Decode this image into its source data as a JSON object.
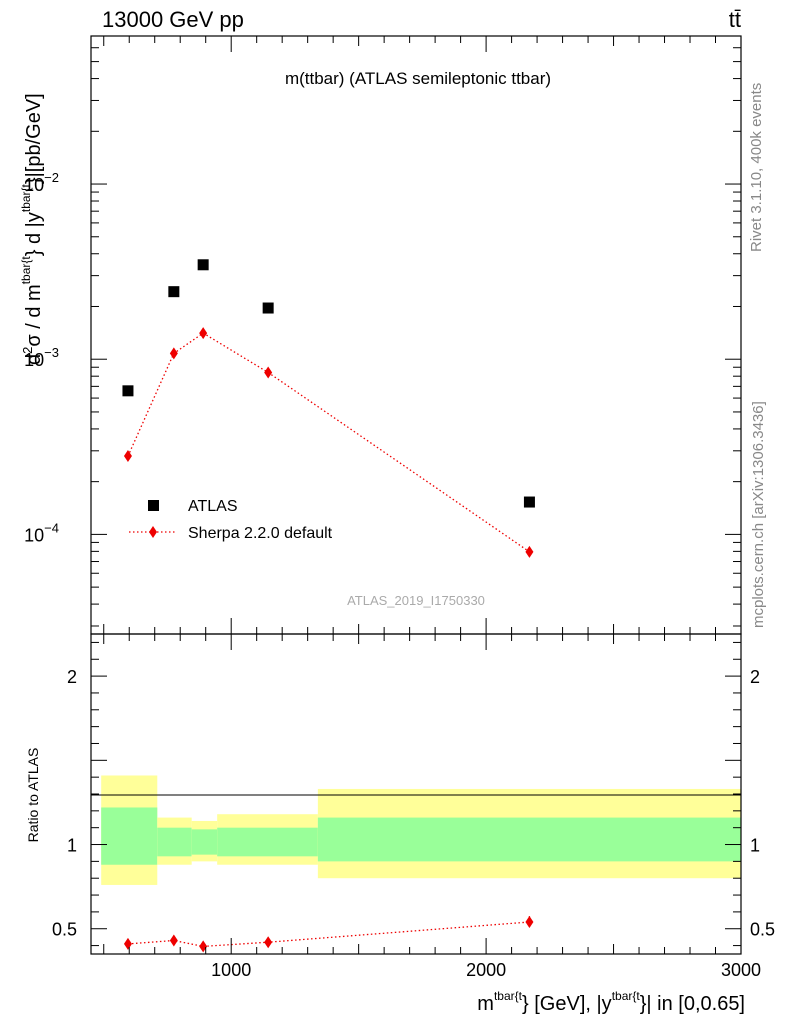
{
  "header": {
    "energy_label": "13000 GeV pp",
    "process_label": "tt̄"
  },
  "side_labels": {
    "rivet": "Rivet 3.1.10,  400k events",
    "mcplots": "mcplots.cern.ch [arXiv:1306.3436]"
  },
  "chart_data": [
    {
      "type": "scatter",
      "panel": "main",
      "title": "m(ttbar) (ATLAS semileptonic ttbar)",
      "watermark": "ATLAS_2019_I1750330",
      "ylabel": "d²σ / d m^{tbar{t}} d |y^{tbar{t}}|[pb/GeV]",
      "yscale": "log",
      "ylim": [
        2.7e-05,
        0.07
      ],
      "xlim": [
        450,
        3000
      ],
      "yticks": [
        {
          "v": 0.0001,
          "base": "10",
          "exp": "−4"
        },
        {
          "v": 0.001,
          "base": "10",
          "exp": "−3"
        },
        {
          "v": 0.01,
          "base": "10",
          "exp": "−2"
        }
      ],
      "legend_position": "bottom-left",
      "series": [
        {
          "name": "ATLAS",
          "style": "black-square-markers",
          "color": "#000000",
          "points": [
            {
              "x": 595,
              "y": 0.00066
            },
            {
              "x": 775,
              "y": 0.00243
            },
            {
              "x": 890,
              "y": 0.00346
            },
            {
              "x": 1145,
              "y": 0.00196
            },
            {
              "x": 2170,
              "y": 0.000153
            }
          ]
        },
        {
          "name": "Sherpa 2.2.0 default",
          "style": "red-diamond-dotted-line",
          "color": "#ee0000",
          "points": [
            {
              "x": 595,
              "y": 0.00028,
              "ylo": 0.000265,
              "yhi": 0.000298
            },
            {
              "x": 775,
              "y": 0.00108,
              "ylo": 0.00104,
              "yhi": 0.00113
            },
            {
              "x": 890,
              "y": 0.00141,
              "ylo": 0.00137,
              "yhi": 0.00146
            },
            {
              "x": 1145,
              "y": 0.00084,
              "ylo": 0.00082,
              "yhi": 0.00087
            },
            {
              "x": 2170,
              "y": 7.95e-05,
              "ylo": 7.7e-05,
              "yhi": 8.25e-05
            }
          ]
        }
      ]
    },
    {
      "type": "scatter",
      "panel": "ratio",
      "ylabel": "Ratio to ATLAS",
      "xlabel": "m^{tbar{t}} [GeV], |y^{tbar{t}}| in [0,0.65]",
      "xlim": [
        450,
        3000
      ],
      "ylim": [
        0.35,
        2.25
      ],
      "xticks": [
        1000,
        2000,
        3000
      ],
      "yticks": [
        0.5,
        1,
        2
      ],
      "bands": [
        {
          "x0": 490,
          "x1": 710,
          "inner": [
            0.88,
            1.22
          ],
          "outer": [
            0.76,
            1.41
          ]
        },
        {
          "x0": 710,
          "x1": 845,
          "inner": [
            0.93,
            1.1
          ],
          "outer": [
            0.88,
            1.16
          ]
        },
        {
          "x0": 845,
          "x1": 945,
          "inner": [
            0.94,
            1.09
          ],
          "outer": [
            0.9,
            1.14
          ]
        },
        {
          "x0": 945,
          "x1": 1340,
          "inner": [
            0.93,
            1.1
          ],
          "outer": [
            0.88,
            1.18
          ]
        },
        {
          "x0": 1340,
          "x1": 3000,
          "inner": [
            0.9,
            1.16
          ],
          "outer": [
            0.8,
            1.33
          ]
        }
      ],
      "band_colors": {
        "inner": "#99ff99",
        "outer": "#ffff99"
      },
      "series": [
        {
          "name": "Sherpa 2.2.0 default",
          "color": "#ee0000",
          "points": [
            {
              "x": 595,
              "y": 0.41,
              "ylo": 0.39,
              "yhi": 0.44
            },
            {
              "x": 775,
              "y": 0.43,
              "ylo": 0.41,
              "yhi": 0.46
            },
            {
              "x": 890,
              "y": 0.395,
              "ylo": 0.385,
              "yhi": 0.405
            },
            {
              "x": 1145,
              "y": 0.42,
              "ylo": 0.4,
              "yhi": 0.43
            },
            {
              "x": 2170,
              "y": 0.54,
              "ylo": 0.51,
              "yhi": 0.575
            }
          ]
        }
      ]
    }
  ]
}
